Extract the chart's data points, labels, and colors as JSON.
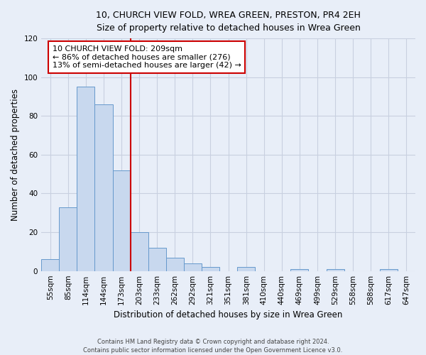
{
  "title": "10, CHURCH VIEW FOLD, WREA GREEN, PRESTON, PR4 2EH",
  "subtitle": "Size of property relative to detached houses in Wrea Green",
  "xlabel": "Distribution of detached houses by size in Wrea Green",
  "ylabel": "Number of detached properties",
  "bar_color": "#c8d8ee",
  "bar_edge_color": "#6699cc",
  "categories": [
    "55sqm",
    "85sqm",
    "114sqm",
    "144sqm",
    "173sqm",
    "203sqm",
    "233sqm",
    "262sqm",
    "292sqm",
    "321sqm",
    "351sqm",
    "381sqm",
    "410sqm",
    "440sqm",
    "469sqm",
    "499sqm",
    "529sqm",
    "558sqm",
    "588sqm",
    "617sqm",
    "647sqm"
  ],
  "values": [
    6,
    33,
    95,
    86,
    52,
    20,
    12,
    7,
    4,
    2,
    0,
    2,
    0,
    0,
    1,
    0,
    1,
    0,
    0,
    1,
    0
  ],
  "ylim": [
    0,
    120
  ],
  "yticks": [
    0,
    20,
    40,
    60,
    80,
    100,
    120
  ],
  "vline_index": 5,
  "vline_color": "#cc0000",
  "annotation_text": "10 CHURCH VIEW FOLD: 209sqm\n← 86% of detached houses are smaller (276)\n13% of semi-detached houses are larger (42) →",
  "annotation_box_color": "#ffffff",
  "annotation_box_edge": "#cc0000",
  "footer_line1": "Contains HM Land Registry data © Crown copyright and database right 2024.",
  "footer_line2": "Contains public sector information licensed under the Open Government Licence v3.0.",
  "background_color": "#e8eef8",
  "grid_color": "#c8d0e0"
}
